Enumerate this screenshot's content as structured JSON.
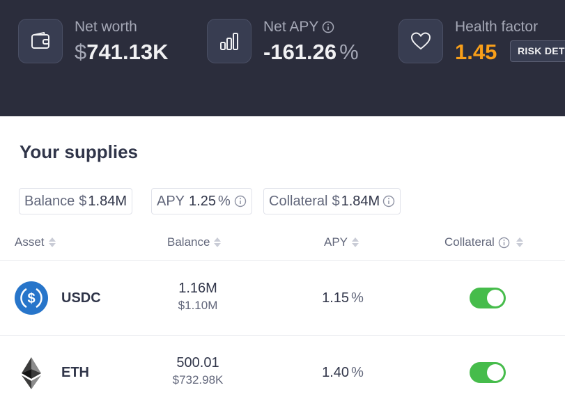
{
  "header": {
    "net_worth": {
      "label": "Net worth",
      "symbol": "$",
      "value": "741.13K",
      "icon": "wallet-icon"
    },
    "net_apy": {
      "label": "Net APY",
      "value": "-161.26",
      "unit": "%",
      "icon": "bar-chart-icon"
    },
    "health_factor": {
      "label": "Health factor",
      "value": "1.45",
      "icon": "heart-icon",
      "color": "#f89f1a"
    },
    "risk_button_label": "RISK DET"
  },
  "supplies": {
    "title": "Your supplies",
    "summary": {
      "balance_label": "Balance",
      "balance_symbol": "$",
      "balance_value": "1.84M",
      "apy_label": "APY",
      "apy_value": "1.25",
      "apy_unit": "%",
      "collateral_label": "Collateral",
      "collateral_symbol": "$",
      "collateral_value": "1.84M"
    },
    "columns": [
      "Asset",
      "Balance",
      "APY",
      "Collateral"
    ],
    "rows": [
      {
        "symbol": "USDC",
        "amount": "1.16M",
        "usd_symbol": "$",
        "usd_value": "1.10M",
        "apy": "1.15",
        "apy_unit": "%",
        "collateral": true,
        "icon": "usdc-icon"
      },
      {
        "symbol": "ETH",
        "amount": "500.01",
        "usd_symbol": "$",
        "usd_value": "732.98K",
        "apy": "1.40",
        "apy_unit": "%",
        "collateral": true,
        "icon": "eth-icon"
      }
    ]
  },
  "colors": {
    "header_bg": "#2b2d3c",
    "toggle_on": "#46bc4b",
    "usdc_blue": "#2775ca",
    "health_orange": "#f89f1a"
  }
}
